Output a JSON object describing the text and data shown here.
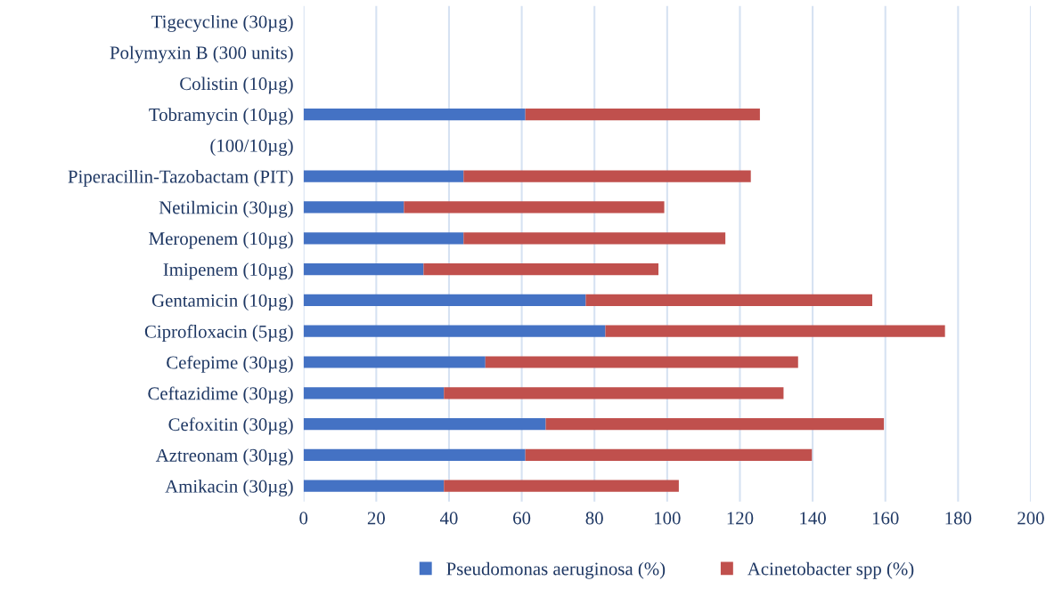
{
  "chart_data": {
    "type": "bar",
    "orientation": "horizontal",
    "stacked": true,
    "categories": [
      "Tigecycline (30µg)",
      "Polymyxin B (300 units)",
      "Colistin (10µg)",
      "Tobramycin (10µg)",
      "(100/10µg)",
      "Piperacillin-Tazobactam (PIT)",
      "Netilmicin (30µg)",
      "Meropenem (10µg)",
      "Imipenem (10µg)",
      "Gentamicin (10µg)",
      "Ciprofloxacin (5µg)",
      "Cefepime (30µg)",
      "Ceftazidime (30µg)",
      "Cefoxitin (30µg)",
      "Aztreonam (30µg)",
      "Amikacin (30µg)"
    ],
    "series": [
      {
        "name": "Pseudomonas aeruginosa (%)",
        "color": "#4472c4",
        "values": [
          null,
          null,
          null,
          61,
          null,
          44,
          27.6,
          44,
          33,
          77.6,
          83,
          50,
          38.6,
          66.6,
          61,
          38.6
        ]
      },
      {
        "name": "Acinetobacter spp (%)",
        "color": "#c0504d",
        "values": [
          null,
          null,
          null,
          64.5,
          null,
          79,
          71.6,
          72,
          64.6,
          78.8,
          93.4,
          86,
          93.4,
          93,
          78.8,
          64.6
        ]
      }
    ],
    "xlim": [
      0,
      200
    ],
    "xticks": [
      0,
      20,
      40,
      60,
      80,
      100,
      120,
      140,
      160,
      180,
      200
    ],
    "grid": "x",
    "legend": "bottom"
  }
}
